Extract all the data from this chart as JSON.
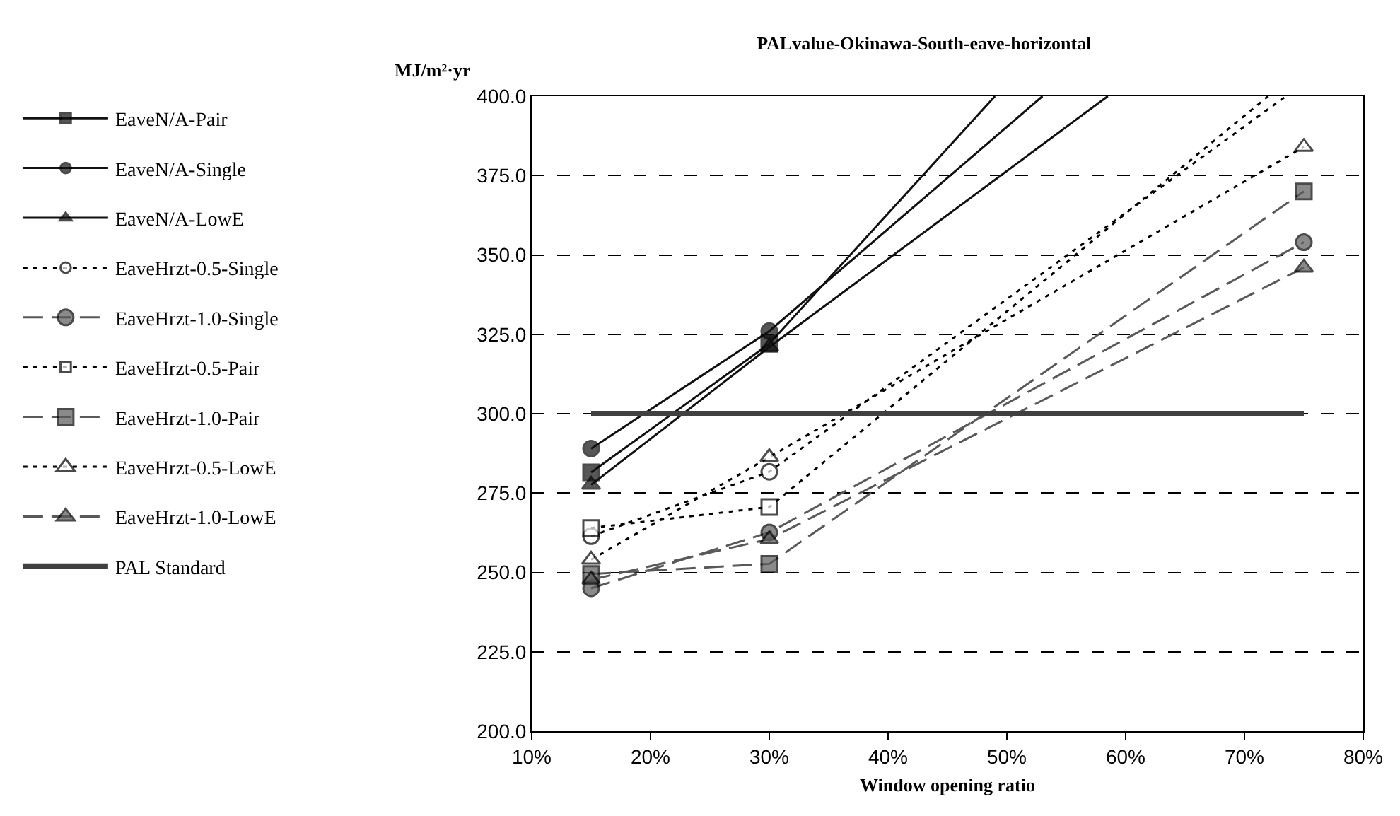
{
  "chart_data": {
    "type": "line",
    "title": "PALvalue-Okinawa-South-eave-horizontal",
    "xlabel": "Window opening ratio",
    "ylabel": "MJ/m²·yr",
    "series": [
      {
        "name": "EaveN/A-Pair",
        "color": "#111111",
        "marker": "square",
        "line_style": "solid",
        "x": [
          15,
          30,
          49
        ],
        "values": [
          281.5,
          322,
          400
        ]
      },
      {
        "name": "EaveN/A-Single",
        "color": "#111111",
        "marker": "circle",
        "line_style": "solid",
        "x": [
          15,
          30,
          53
        ],
        "values": [
          289,
          326,
          400
        ]
      },
      {
        "name": "EaveN/A-LowE",
        "color": "#111111",
        "marker": "triangle",
        "line_style": "solid",
        "x": [
          15,
          30,
          58.5
        ],
        "values": [
          277.6,
          321,
          400
        ]
      },
      {
        "name": "EaveHrzt-0.5-Single",
        "color": "#000000",
        "marker": "circle",
        "line_style": "dotted",
        "x": [
          15,
          30,
          73.5
        ],
        "values": [
          261.4,
          281.7,
          400
        ]
      },
      {
        "name": "EaveHrzt-1.0-Single",
        "color": "#595959",
        "marker": "circle",
        "line_style": "dashed",
        "x": [
          15,
          30,
          75
        ],
        "values": [
          245,
          262.6,
          354
        ]
      },
      {
        "name": "EaveHrzt-0.5-Pair",
        "color": "#000000",
        "marker": "square",
        "line_style": "dotted",
        "x": [
          15,
          30,
          72
        ],
        "values": [
          264,
          270.6,
          400
        ]
      },
      {
        "name": "EaveHrzt-1.0-Pair",
        "color": "#595959",
        "marker": "square",
        "line_style": "dashed",
        "x": [
          15,
          30,
          75
        ],
        "values": [
          249.5,
          252.7,
          370
        ]
      },
      {
        "name": "EaveHrzt-0.5-LowE",
        "color": "#000000",
        "marker": "triangle",
        "line_style": "dotted",
        "x": [
          15,
          30,
          75
        ],
        "values": [
          254,
          286.3,
          384
        ]
      },
      {
        "name": "EaveHrzt-1.0-LowE",
        "color": "#595959",
        "marker": "triangle",
        "line_style": "dashed",
        "x": [
          15,
          30,
          75
        ],
        "values": [
          247.7,
          260.5,
          346
        ]
      },
      {
        "name": "PAL Standard",
        "color": "#404040",
        "marker": "none",
        "line_style": "solid",
        "x": [
          15,
          30,
          75
        ],
        "values": [
          300,
          300,
          300
        ]
      }
    ],
    "xlim": [
      10,
      80
    ],
    "xticks": [
      {
        "value": 10,
        "label": "10%"
      },
      {
        "value": 20,
        "label": "20%"
      },
      {
        "value": 30,
        "label": "30%"
      },
      {
        "value": 40,
        "label": "40%"
      },
      {
        "value": 50,
        "label": "50%"
      },
      {
        "value": 60,
        "label": "60%"
      },
      {
        "value": 70,
        "label": "70%"
      },
      {
        "value": 80,
        "label": "80%"
      }
    ],
    "ylim": [
      200,
      400
    ],
    "yticks": [
      {
        "value": 200,
        "label": "200.0"
      },
      {
        "value": 225,
        "label": "225.0"
      },
      {
        "value": 250,
        "label": "250.0"
      },
      {
        "value": 275,
        "label": "275.0"
      },
      {
        "value": 300,
        "label": "300.0"
      },
      {
        "value": 325,
        "label": "325.0"
      },
      {
        "value": 350,
        "label": "350.0"
      },
      {
        "value": 375,
        "label": "375.0"
      },
      {
        "value": 400,
        "label": "400.0"
      }
    ],
    "grid": "y",
    "legend": "left"
  }
}
